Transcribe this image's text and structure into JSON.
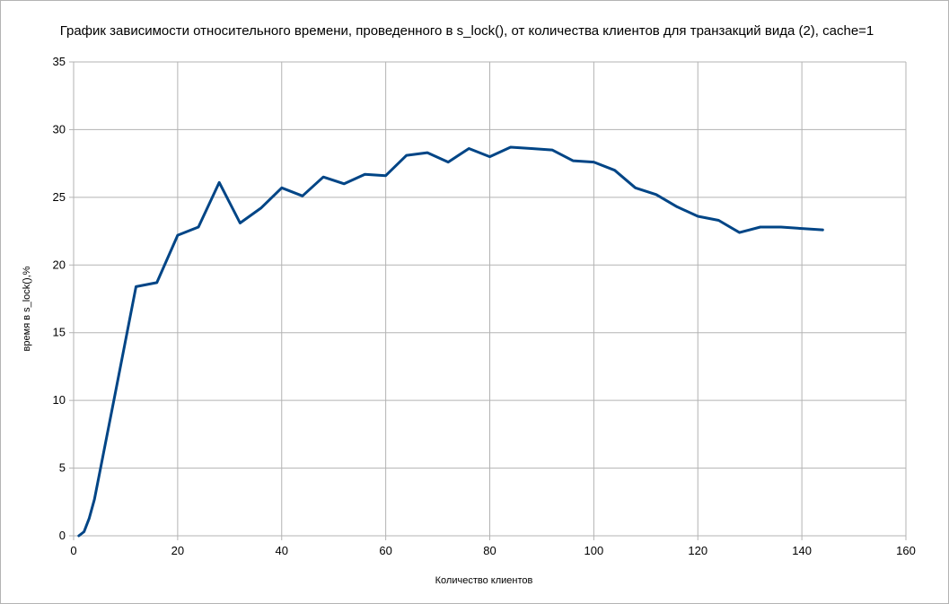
{
  "chart_data": {
    "type": "line",
    "title": "График зависимости относительного времени, проведенного в s_lock(), от количества клиентов для транзакций вида (2), cache=1",
    "xlabel": "Количество клиентов",
    "ylabel": "время в s_lock(),%",
    "xlim": [
      0,
      160
    ],
    "ylim": [
      0,
      35
    ],
    "xticks": [
      0,
      20,
      40,
      60,
      80,
      100,
      120,
      140,
      160
    ],
    "yticks": [
      0,
      5,
      10,
      15,
      20,
      25,
      30,
      35
    ],
    "grid": true,
    "legend": "none",
    "line_color": "#004586",
    "series": [
      {
        "x": [
          1,
          2,
          3,
          4,
          8,
          12,
          16,
          20,
          24,
          28,
          32,
          36,
          40,
          44,
          48,
          52,
          56,
          60,
          64,
          68,
          72,
          76,
          80,
          84,
          88,
          92,
          96,
          100,
          104,
          108,
          112,
          116,
          120,
          124,
          128,
          132,
          136,
          140,
          144
        ],
        "y": [
          0,
          0.3,
          1.3,
          2.7,
          10.5,
          18.4,
          18.7,
          22.2,
          22.8,
          26.1,
          23.1,
          24.2,
          25.7,
          25.1,
          26.5,
          26.0,
          26.7,
          26.6,
          28.1,
          28.3,
          27.6,
          28.6,
          28.0,
          28.7,
          28.6,
          28.5,
          27.7,
          27.6,
          27.0,
          25.7,
          25.2,
          24.3,
          23.6,
          23.3,
          22.4,
          22.8,
          22.8,
          22.7,
          22.6
        ]
      }
    ]
  }
}
